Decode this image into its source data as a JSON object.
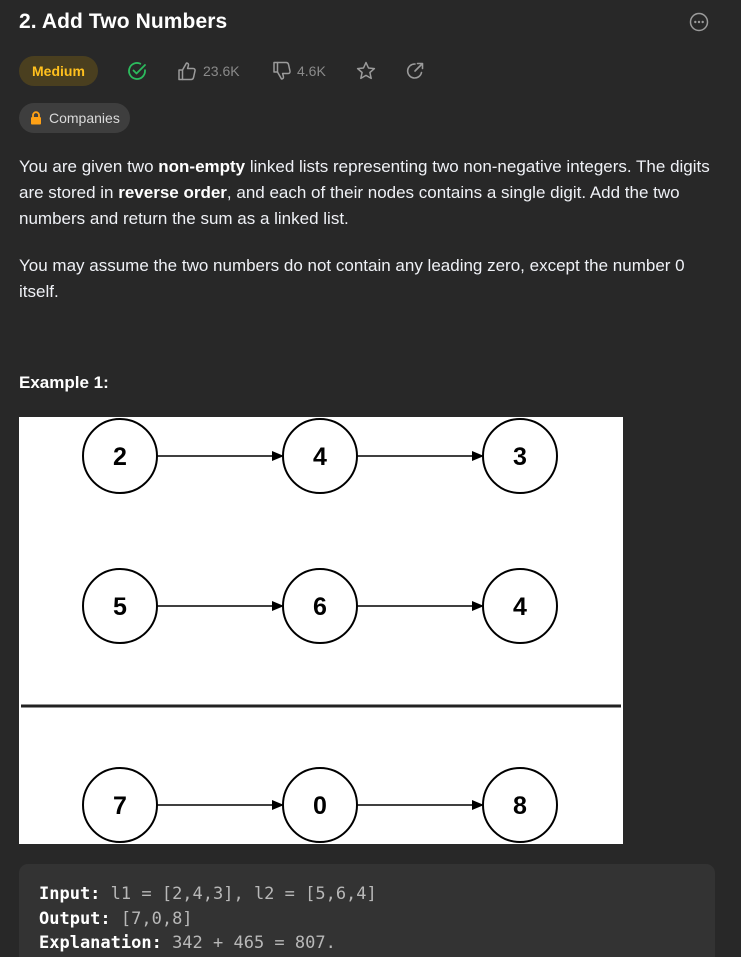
{
  "problem": {
    "title": "2. Add Two Numbers",
    "difficulty": "Medium",
    "likes": "23.6K",
    "dislikes": "4.6K",
    "companies_label": "Companies"
  },
  "description": {
    "p1": [
      {
        "text": "You are given two ",
        "bold": false
      },
      {
        "text": "non-empty",
        "bold": true
      },
      {
        "text": " linked lists representing two non-negative integers. The digits are stored in ",
        "bold": false
      },
      {
        "text": "reverse order",
        "bold": true
      },
      {
        "text": ", and each of their nodes contains a single digit. Add the two numbers and return the sum as a linked list.",
        "bold": false
      }
    ],
    "p2": "You may assume the two numbers do not contain any leading zero, except the number 0 itself."
  },
  "example": {
    "title": "Example 1:",
    "diagram": {
      "rows": [
        [
          "2",
          "4",
          "3"
        ],
        [
          "5",
          "6",
          "4"
        ],
        [
          "7",
          "0",
          "8"
        ]
      ]
    },
    "input_label": "Input:",
    "input_value": " l1 = [2,4,3], l2 = [5,6,4]",
    "output_label": "Output:",
    "output_value": " [7,0,8]",
    "explanation_label": "Explanation:",
    "explanation_value": " 342 + 465 = 807."
  },
  "colors": {
    "background": "#282828",
    "difficulty_medium": "#ffc01e",
    "accepted_green": "#2cbb5d",
    "lock_orange": "#ffa116"
  }
}
